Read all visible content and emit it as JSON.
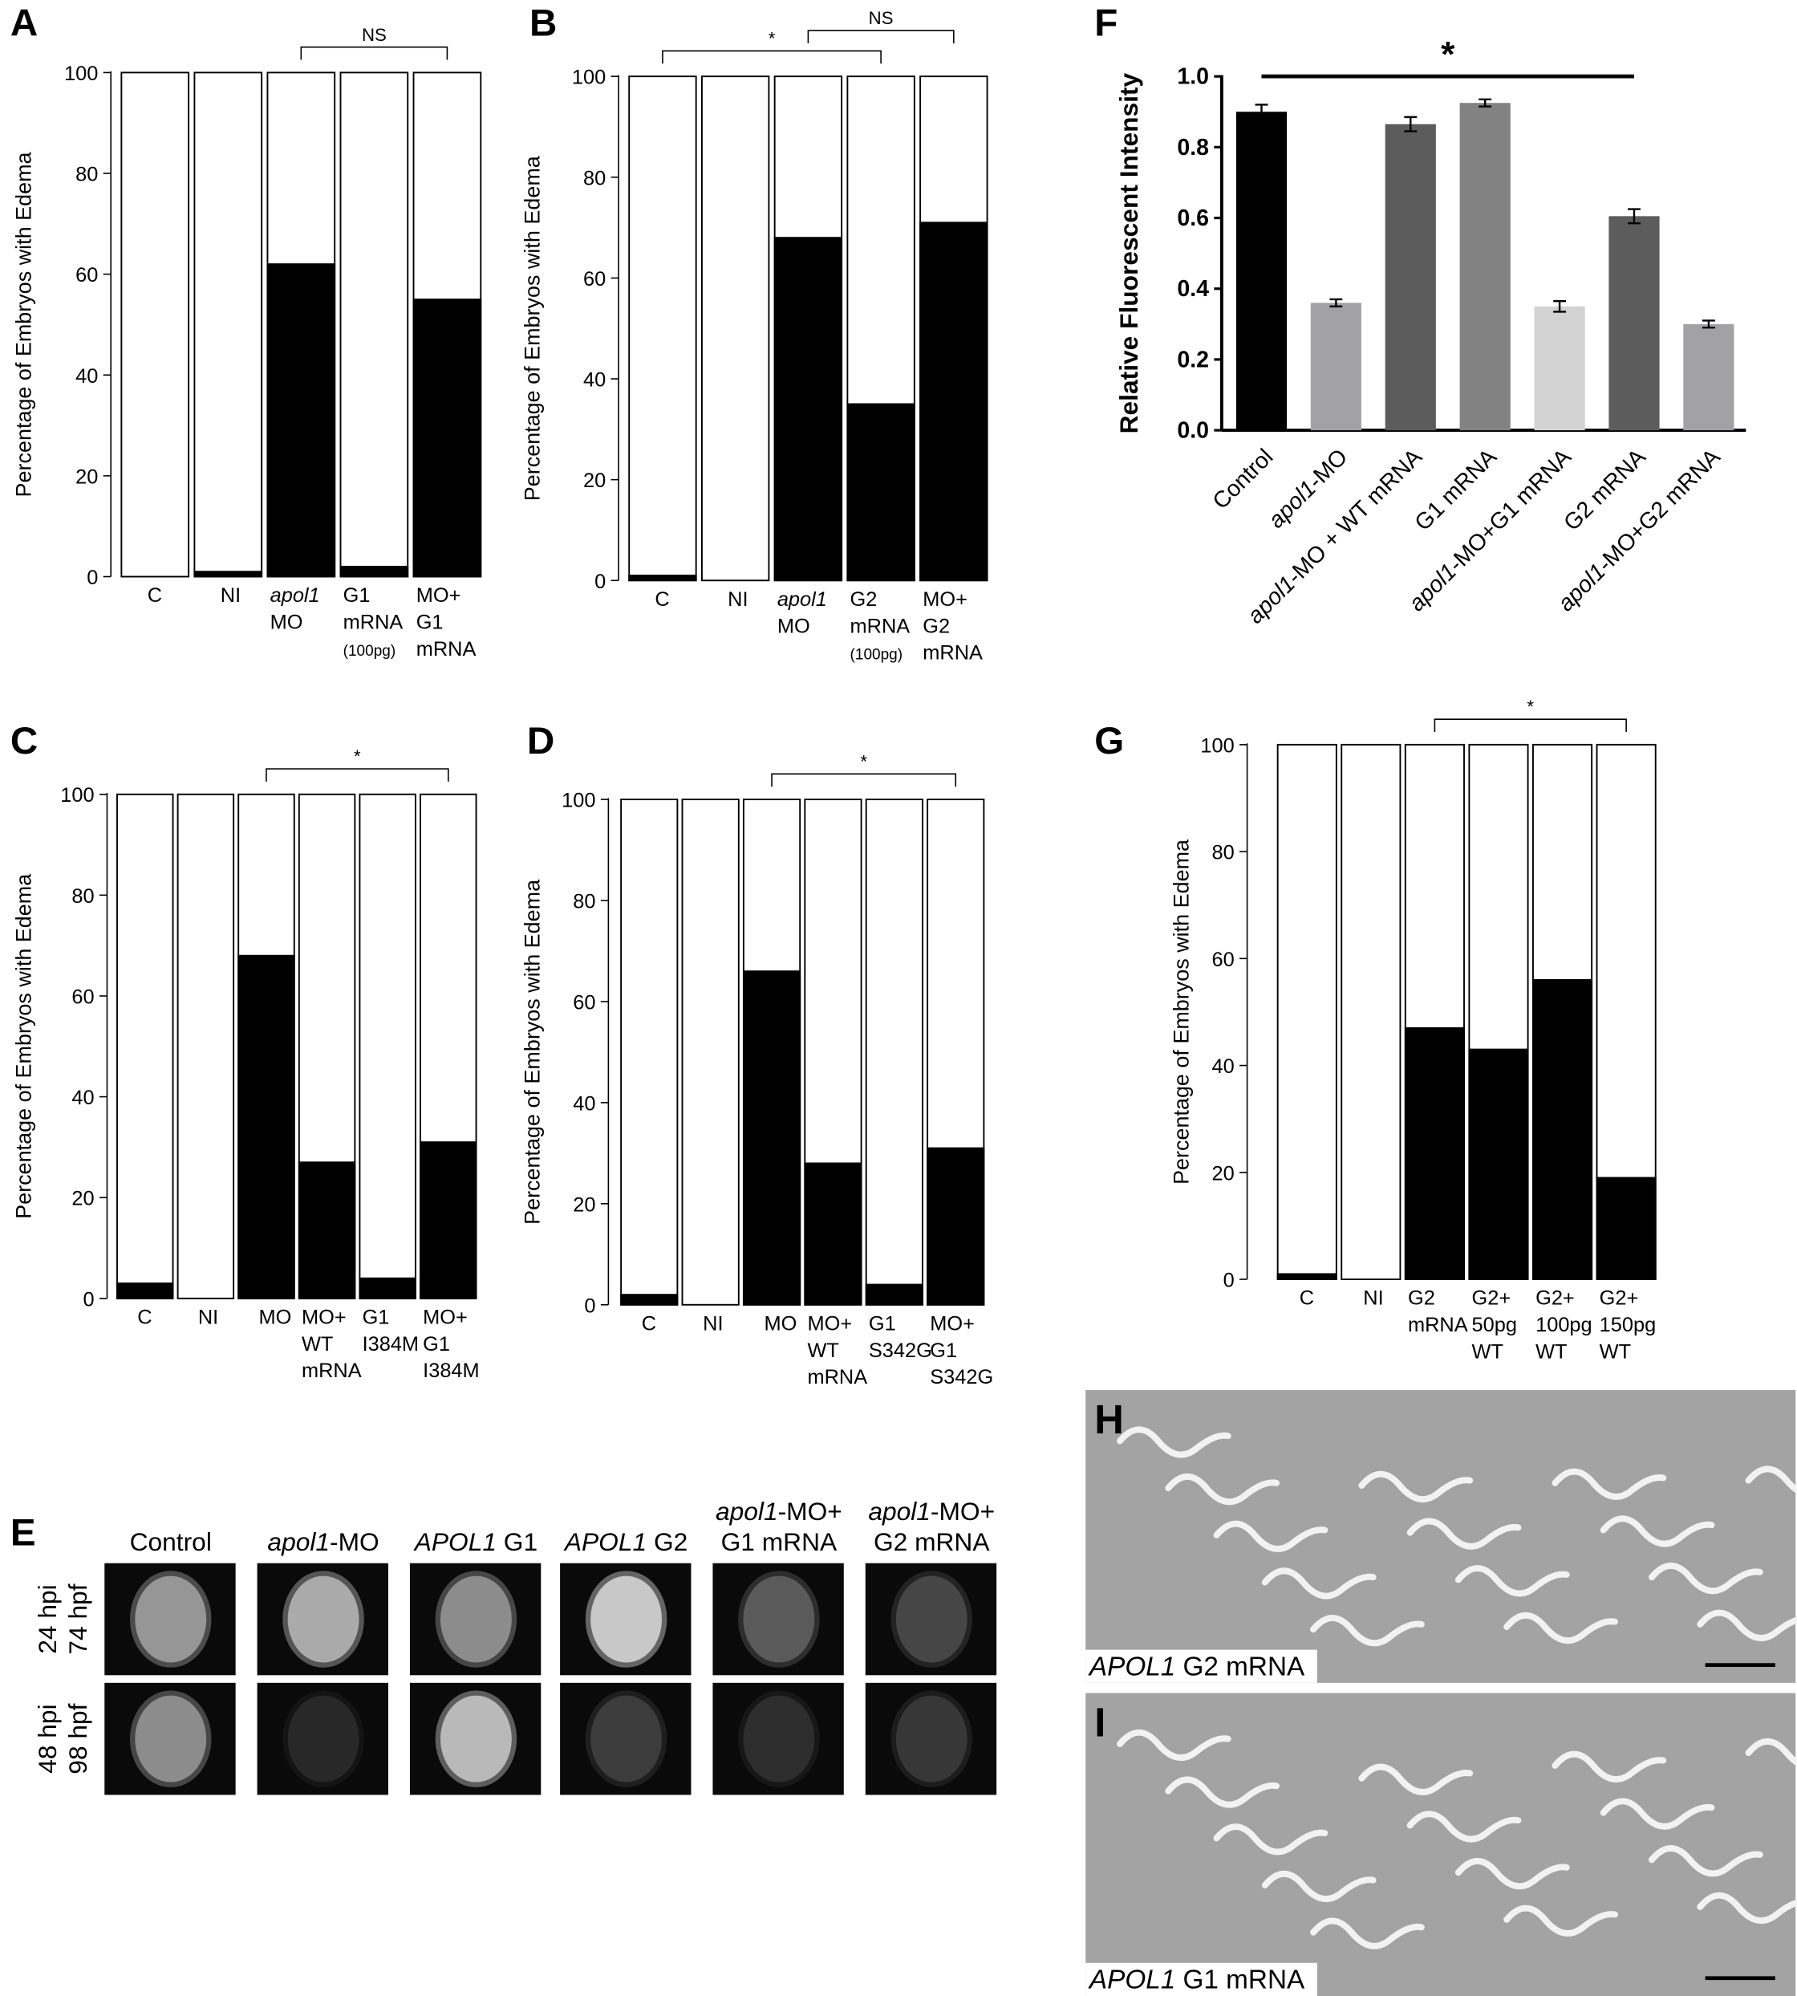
{
  "chart_data": [
    {
      "label": "A",
      "type": "stacked-percent",
      "ylabel": "Percentage of Embryos with Edema",
      "categories": [
        "C",
        "NI",
        "apol1\nMO",
        "G1\nmRNA\n(100pg)",
        "MO+\nG1\nmRNA"
      ],
      "values": [
        0,
        1,
        62,
        2,
        55
      ],
      "color": "#000000",
      "ylim": [
        0,
        100
      ],
      "yticks": [
        0,
        20,
        40,
        60,
        80,
        100
      ],
      "annotations": [
        {
          "text": "NS",
          "from": 2,
          "to": 4
        }
      ]
    },
    {
      "label": "B",
      "type": "stacked-percent",
      "ylabel": "Percentage of Embryos with Edema",
      "categories": [
        "C",
        "NI",
        "apol1\nMO",
        "G2\nmRNA\n(100pg)",
        "MO+\nG2\nmRNA"
      ],
      "values": [
        1,
        0,
        68,
        35,
        71
      ],
      "color": "#000000",
      "ylim": [
        0,
        100
      ],
      "yticks": [
        0,
        20,
        40,
        60,
        80,
        100
      ],
      "annotations": [
        {
          "text": "*",
          "from": 0,
          "to": 3
        },
        {
          "text": "NS",
          "from": 2,
          "to": 4
        }
      ]
    },
    {
      "label": "C",
      "type": "stacked-percent",
      "ylabel": "Percentage of Embryos with Edema",
      "categories": [
        "C",
        "NI",
        "MO",
        "MO+\nWT\nmRNA",
        "G1\nI384M",
        "MO+\nG1\nI384M"
      ],
      "values": [
        3,
        0,
        68,
        27,
        4,
        31
      ],
      "color": "#000000",
      "ylim": [
        0,
        100
      ],
      "yticks": [
        0,
        20,
        40,
        60,
        80,
        100
      ],
      "annotations": [
        {
          "text": "*",
          "from": 2,
          "to": 5
        }
      ]
    },
    {
      "label": "D",
      "type": "stacked-percent",
      "ylabel": "Percentage of Embryos with Edema",
      "categories": [
        "C",
        "NI",
        "MO",
        "MO+\nWT\nmRNA",
        "G1\nS342G",
        "MO+\nG1\nS342G"
      ],
      "values": [
        2,
        0,
        66,
        28,
        4,
        31
      ],
      "color": "#000000",
      "ylim": [
        0,
        100
      ],
      "yticks": [
        0,
        20,
        40,
        60,
        80,
        100
      ],
      "annotations": [
        {
          "text": "*",
          "from": 2,
          "to": 5
        }
      ]
    },
    {
      "label": "F",
      "type": "bar",
      "ylabel": "Relative Fluorescent Intensity",
      "categories": [
        "Control",
        "apol1-MO",
        "apol1-MO + WT mRNA",
        "G1 mRNA",
        "apol1-MO+G1 mRNA",
        "G2 mRNA",
        "apol1-MO+G2 mRNA"
      ],
      "values": [
        0.9,
        0.36,
        0.865,
        0.925,
        0.35,
        0.605,
        0.3
      ],
      "errors": [
        0.02,
        0.01,
        0.02,
        0.01,
        0.015,
        0.02,
        0.01
      ],
      "colors": [
        "#000000",
        "#a2a2a6",
        "#5c5c5c",
        "#828282",
        "#d2d2d2",
        "#5c5c5c",
        "#a2a2a6"
      ],
      "ylim": [
        0,
        1
      ],
      "yticks": [
        {
          "value": 0,
          "label": "0.0"
        },
        0.2,
        0.4,
        0.6,
        0.8,
        {
          "value": 1,
          "label": "1.0"
        }
      ],
      "annotations": [
        {
          "text": "*",
          "from": 0,
          "to": 5
        }
      ]
    },
    {
      "label": "G",
      "type": "stacked-percent",
      "ylabel": "Percentage of Embryos with Edema",
      "categories": [
        "C",
        "NI",
        "G2\nmRNA",
        "G2+\n50pg\nWT",
        "G2+\n100pg\nWT",
        "G2+\n150pg\nWT"
      ],
      "values": [
        1,
        0,
        47,
        43,
        56,
        19
      ],
      "color": "#000000",
      "ylim": [
        0,
        100
      ],
      "yticks": [
        0,
        20,
        40,
        60,
        80,
        100
      ],
      "annotations": [
        {
          "text": "*",
          "from": 2,
          "to": 5
        }
      ]
    }
  ],
  "panel_e": {
    "label": "E",
    "columns": [
      "Control",
      "apol1-MO",
      "APOL1 G1",
      "APOL1 G2",
      "apol1-MO+\nG1 mRNA",
      "apol1-MO+\nG2 mRNA"
    ],
    "rows": [
      "24 hpi\n74 hpf",
      "48 hpi\n98 hpf"
    ]
  },
  "panel_h": {
    "label": "H",
    "caption": "APOL1 G2 mRNA"
  },
  "panel_i": {
    "label": "I",
    "caption": "APOL1 G1 mRNA"
  }
}
